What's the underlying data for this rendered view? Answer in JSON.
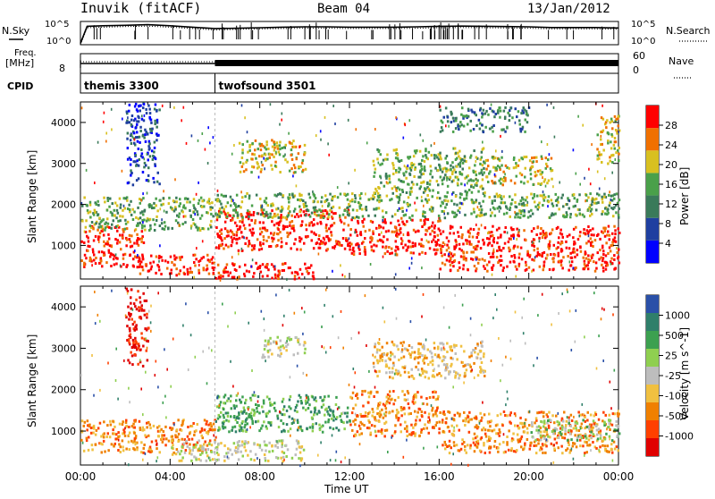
{
  "header": {
    "station": "Inuvik (fitACF)",
    "beam": "Beam 04",
    "date": "13/Jan/2012"
  },
  "top_panel_labels": {
    "n_sky": "N.Sky",
    "n_search": "N.Search",
    "freq_line1": "Freq.",
    "freq_line2": "[MHz]",
    "nave": "Nave",
    "cpid": "CPID"
  },
  "chart_data": [
    {
      "type": "line",
      "title": "N.Sky / N.Search",
      "ylabel": "N.Sky",
      "y2label": "N.Search",
      "yticks_left": [
        "10^5",
        "10^0"
      ],
      "yticks_right": [
        "10^5",
        "10^0"
      ],
      "scale": "log",
      "ylim": [
        1,
        100000
      ],
      "x_hours": [
        0,
        0.3,
        1,
        2,
        3,
        4,
        5,
        6,
        7,
        8,
        9,
        10,
        11,
        12,
        13,
        14,
        15,
        16,
        17,
        18,
        19,
        20,
        21,
        22,
        23,
        24
      ],
      "series": [
        {
          "name": "N.Sky",
          "values": [
            2,
            9000,
            12000,
            15000,
            20000,
            12000,
            6000,
            3000,
            3500,
            4500,
            6000,
            7000,
            7000,
            6000,
            6000,
            6000,
            7000,
            9000,
            10000,
            9000,
            8000,
            7000,
            5000,
            5000,
            5000,
            4000
          ]
        },
        {
          "name": "N.Search",
          "values": [
            1,
            4500,
            6000,
            8000,
            10000,
            6000,
            3000,
            1500,
            2000,
            2500,
            3000,
            3500,
            3500,
            3000,
            3000,
            3000,
            3500,
            4500,
            5000,
            4500,
            4000,
            3500,
            2500,
            2500,
            2500,
            2000
          ]
        }
      ]
    },
    {
      "type": "line",
      "title": "Freq / Nave",
      "ylabel": "Freq. [MHz]",
      "y2label": "Nave",
      "yticks_left": [
        "8"
      ],
      "yticks_right": [
        "60",
        "0"
      ],
      "ylim_right": [
        0,
        60
      ],
      "x_hours": [
        0,
        6,
        6,
        24
      ],
      "series": [
        {
          "name": "Freq",
          "values": [
            11,
            11,
            11,
            11
          ]
        },
        {
          "name": "Nave",
          "values": [
            22,
            22,
            22,
            22
          ]
        }
      ],
      "cpid_segments": [
        {
          "label": "themis 3300",
          "start": 0,
          "end": 6
        },
        {
          "label": "twofsound 3501",
          "start": 6,
          "end": 24
        }
      ]
    },
    {
      "type": "heatmap",
      "title": "Power",
      "ylabel": "Slant Range [km]",
      "colorbar_label": "Power [dB]",
      "ylim": [
        180,
        4500
      ],
      "yticks": [
        1000,
        2000,
        3000,
        4000
      ],
      "colorbar_ticks": [
        4,
        8,
        12,
        16,
        20,
        24,
        28
      ],
      "colorbar_colors": [
        "#0000ff",
        "#1f3fa0",
        "#3a7a5a",
        "#4aa04a",
        "#d8c020",
        "#f07000",
        "#ff0000"
      ],
      "bands": [
        {
          "t0": 0.0,
          "t1": 2.8,
          "r0": 500,
          "r1": 1500,
          "level": 6
        },
        {
          "t0": 2.5,
          "t1": 6.0,
          "r0": 300,
          "r1": 800,
          "level": 6
        },
        {
          "t0": 6.0,
          "t1": 10.5,
          "r0": 200,
          "r1": 600,
          "level": 6
        },
        {
          "t0": 6.0,
          "t1": 12.0,
          "r0": 900,
          "r1": 1900,
          "level": 6
        },
        {
          "t0": 12.0,
          "t1": 16.0,
          "r0": 800,
          "r1": 1700,
          "level": 6
        },
        {
          "t0": 16.0,
          "t1": 24.0,
          "r0": 400,
          "r1": 1500,
          "level": 6
        },
        {
          "t0": 0.0,
          "t1": 6.0,
          "r0": 1400,
          "r1": 2200,
          "level": 3
        },
        {
          "t0": 6.0,
          "t1": 24.0,
          "r0": 1700,
          "r1": 2300,
          "level": 3
        },
        {
          "t0": 2.0,
          "t1": 3.5,
          "r0": 2500,
          "r1": 4500,
          "level": 1
        },
        {
          "t0": 7.0,
          "t1": 10.0,
          "r0": 2800,
          "r1": 3600,
          "level": 4
        },
        {
          "t0": 13.0,
          "t1": 18.0,
          "r0": 2300,
          "r1": 3400,
          "level": 3
        },
        {
          "t0": 18.0,
          "t1": 21.0,
          "r0": 2500,
          "r1": 3200,
          "level": 4
        },
        {
          "t0": 16.0,
          "t1": 20.0,
          "r0": 3800,
          "r1": 4400,
          "level": 2
        },
        {
          "t0": 23.0,
          "t1": 24.0,
          "r0": 3000,
          "r1": 4200,
          "level": 4
        }
      ]
    },
    {
      "type": "heatmap",
      "title": "Velocity",
      "ylabel": "Slant Range [km]",
      "xlabel": "Time UT",
      "xticks": [
        "00:00",
        "04:00",
        "08:00",
        "12:00",
        "16:00",
        "20:00",
        "00:00"
      ],
      "colorbar_label": "Velocity [m s^-1]",
      "ylim": [
        180,
        4500
      ],
      "yticks": [
        1000,
        2000,
        3000,
        4000
      ],
      "colorbar_ticks": [
        1000,
        500,
        25,
        -25,
        -100,
        -500,
        -1000
      ],
      "colorbar_colors": [
        "#2a50a8",
        "#2f7f6a",
        "#3ca050",
        "#8fcf50",
        "#bdbdbd",
        "#f0c040",
        "#f08000",
        "#ff4000",
        "#e00000"
      ],
      "bands": [
        {
          "t0": 0.0,
          "t1": 6.0,
          "r0": 500,
          "r1": 1300,
          "level": 6
        },
        {
          "t0": 4.0,
          "t1": 10.0,
          "r0": 300,
          "r1": 800,
          "level": 4
        },
        {
          "t0": 6.0,
          "t1": 12.0,
          "r0": 1000,
          "r1": 1900,
          "level": 2
        },
        {
          "t0": 12.0,
          "t1": 16.0,
          "r0": 900,
          "r1": 2000,
          "level": 6
        },
        {
          "t0": 16.0,
          "t1": 24.0,
          "r0": 500,
          "r1": 1500,
          "level": 6
        },
        {
          "t0": 20.0,
          "t1": 24.0,
          "r0": 800,
          "r1": 1300,
          "level": 3
        },
        {
          "t0": 8.0,
          "t1": 10.0,
          "r0": 2800,
          "r1": 3300,
          "level": 4
        },
        {
          "t0": 13.0,
          "t1": 18.0,
          "r0": 2300,
          "r1": 3200,
          "level": 5
        },
        {
          "t0": 2.0,
          "t1": 3.0,
          "r0": 2600,
          "r1": 4500,
          "level": 8
        }
      ]
    }
  ]
}
